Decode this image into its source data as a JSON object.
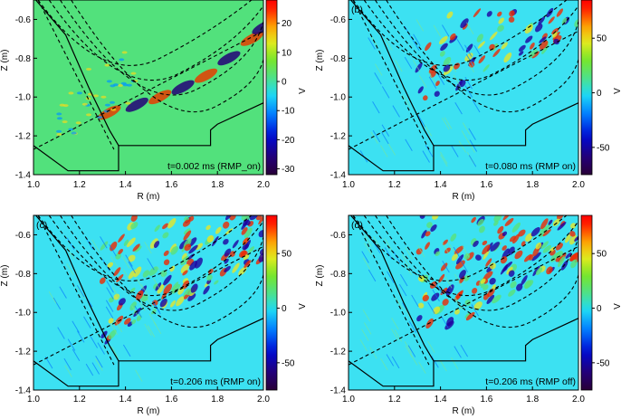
{
  "chart_data": [
    {
      "type": "heatmap",
      "panel_label": "",
      "annotation": "t=0.002 ms (RMP_on)",
      "xlabel": "R (m)",
      "ylabel": "Z (m)",
      "colorbar_label": "V",
      "xlim": [
        1.0,
        2.0
      ],
      "ylim": [
        -1.4,
        -0.5
      ],
      "xticks": [
        "1.0",
        "1.2",
        "1.4",
        "1.6",
        "1.8",
        "2.0"
      ],
      "yticks": [
        "-0.6",
        "-0.8",
        "-1.0",
        "-1.2",
        "-1.4"
      ],
      "colorbar_ticks": [
        "20",
        "10",
        "0",
        "-10",
        "-20",
        "-30"
      ],
      "colorbar_range": [
        -32,
        28
      ],
      "background_color": "#52e17c"
    },
    {
      "type": "heatmap",
      "panel_label": "(b)",
      "annotation": "t=0.080 ms (RMP on)",
      "xlabel": "R (m)",
      "ylabel": "Z (m)",
      "colorbar_label": "V",
      "xlim": [
        1.0,
        2.0
      ],
      "ylim": [
        -1.4,
        -0.5
      ],
      "xticks": [
        "1.0",
        "1.2",
        "1.4",
        "1.6",
        "1.8",
        "2.0"
      ],
      "yticks": [
        "-0.6",
        "-0.8",
        "-1.0",
        "-1.2",
        "-1.4"
      ],
      "colorbar_ticks": [
        "50",
        "0",
        "-50"
      ],
      "colorbar_range": [
        -75,
        85
      ],
      "background_color": "#3ce1f2"
    },
    {
      "type": "heatmap",
      "panel_label": "(c)",
      "annotation": "t=0.206 ms (RMP on)",
      "xlabel": "R (m)",
      "ylabel": "Z (m)",
      "colorbar_label": "V",
      "xlim": [
        1.0,
        2.0
      ],
      "ylim": [
        -1.4,
        -0.5
      ],
      "xticks": [
        "1.0",
        "1.2",
        "1.4",
        "1.6",
        "1.8",
        "2.0"
      ],
      "yticks": [
        "-0.6",
        "-0.8",
        "-1.0",
        "-1.2",
        "-1.4"
      ],
      "colorbar_ticks": [
        "50",
        "0",
        "-50"
      ],
      "colorbar_range": [
        -75,
        85
      ],
      "background_color": "#3ce1f2"
    },
    {
      "type": "heatmap",
      "panel_label": "(d)",
      "annotation": "t=0.206 ms (RMP off)",
      "xlabel": "R (m)",
      "ylabel": "Z (m)",
      "colorbar_label": "V",
      "xlim": [
        1.0,
        2.0
      ],
      "ylim": [
        -1.4,
        -0.5
      ],
      "xticks": [
        "1.0",
        "1.2",
        "1.4",
        "1.6",
        "1.8",
        "2.0"
      ],
      "yticks": [
        "-0.6",
        "-0.8",
        "-1.0",
        "-1.2",
        "-1.4"
      ],
      "colorbar_ticks": [
        "50",
        "0",
        "-50"
      ],
      "colorbar_range": [
        -75,
        85
      ],
      "background_color": "#3ce1f2"
    }
  ]
}
